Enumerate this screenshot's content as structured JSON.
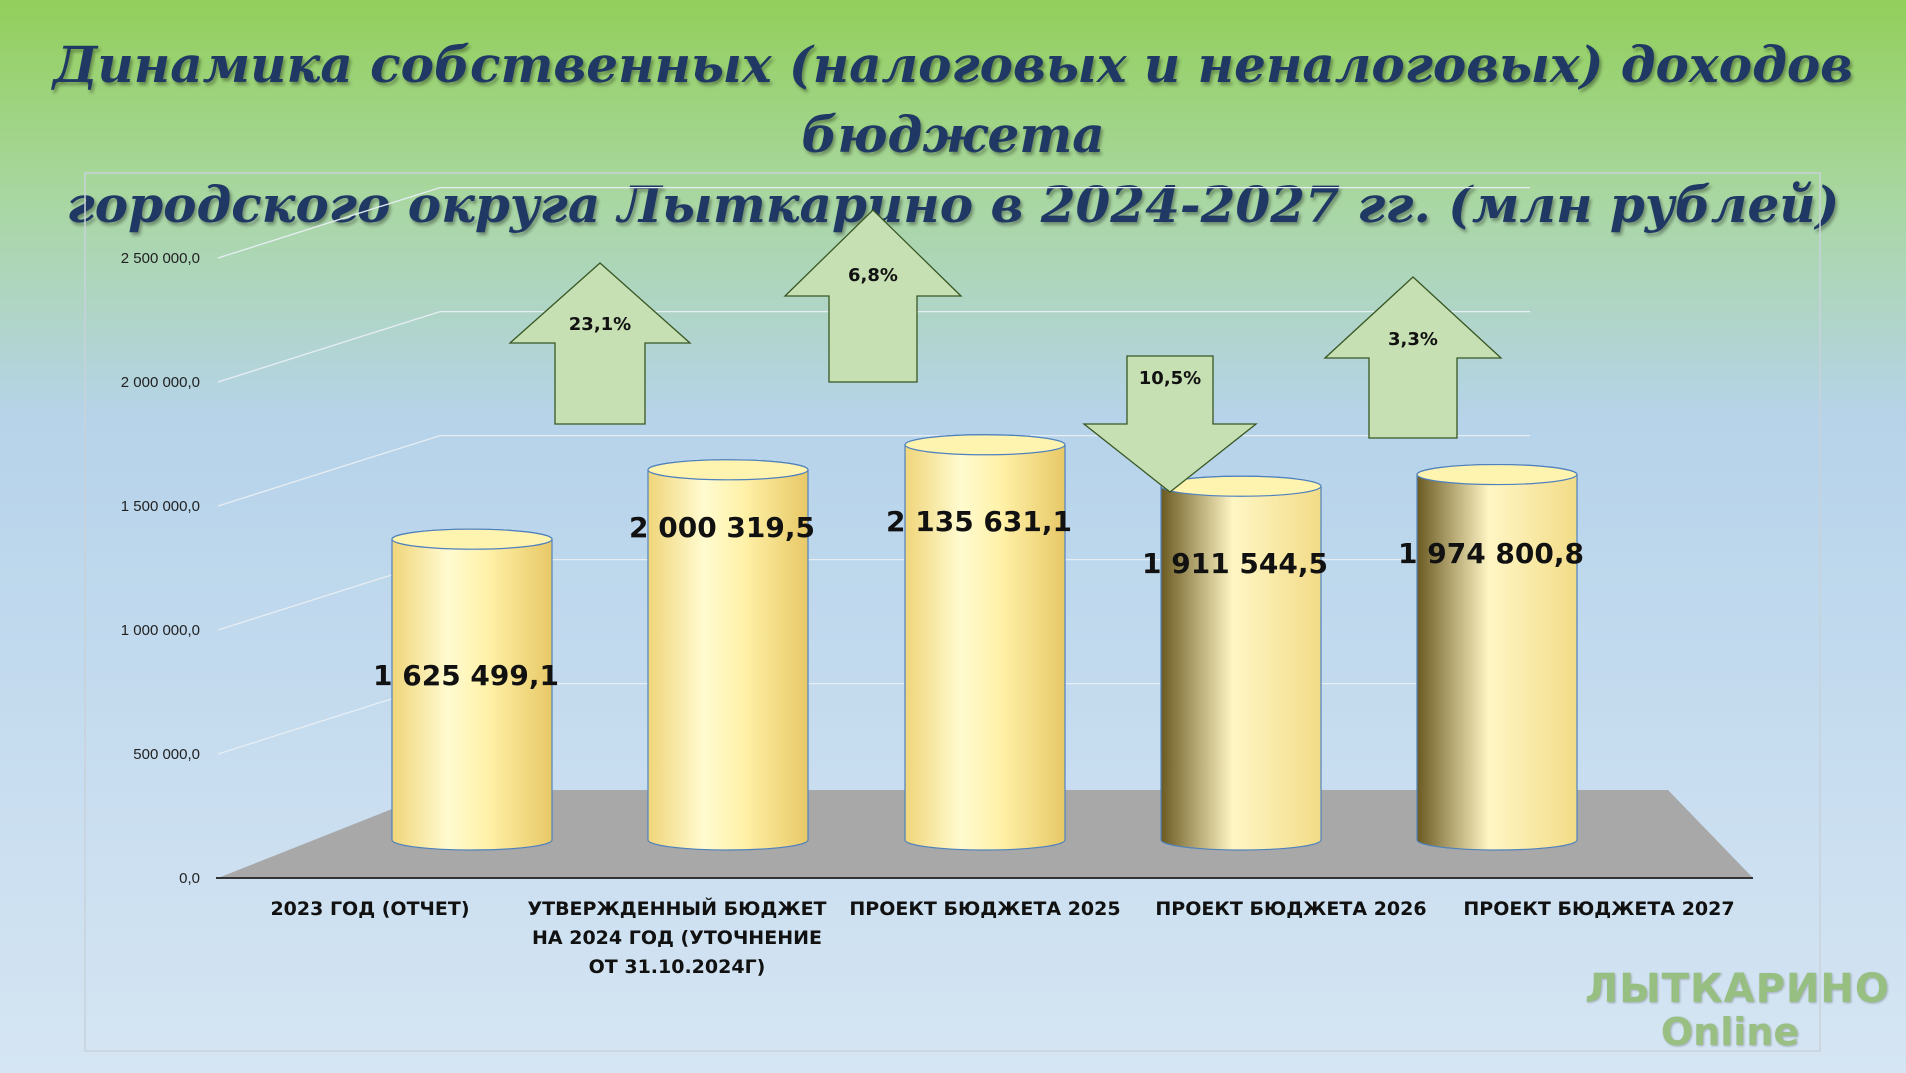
{
  "title_line1": "Динамика собственных (налоговых и неналоговых) доходов бюджета",
  "title_line2": "городского округа Лыткарино в 2024-2027 гг. (млн рублей)",
  "chart_data": {
    "type": "bar",
    "title": "Динамика собственных (налоговых и неналоговых) доходов бюджета городского округа Лыткарино в 2024-2027 гг. (млн рублей)",
    "categories": [
      "2023 ГОД (ОТЧЕТ)",
      "УТВЕРЖДЕННЫЙ БЮДЖЕТ НА 2024 ГОД (УТОЧНЕНИЕ ОТ 31.10.2024Г)",
      "ПРОЕКТ БЮДЖЕТА 2025",
      "ПРОЕКТ БЮДЖЕТА 2026",
      "ПРОЕКТ БЮДЖЕТА 2027"
    ],
    "category_lines": [
      [
        "2023 ГОД (ОТЧЕТ)"
      ],
      [
        "УТВЕРЖДЕННЫЙ БЮДЖЕТ",
        "НА 2024 ГОД (УТОЧНЕНИЕ",
        "ОТ 31.10.2024Г)"
      ],
      [
        "ПРОЕКТ БЮДЖЕТА 2025"
      ],
      [
        "ПРОЕКТ БЮДЖЕТА 2026"
      ],
      [
        "ПРОЕКТ БЮДЖЕТА 2027"
      ]
    ],
    "values": [
      1625499.1,
      2000319.5,
      2135631.1,
      1911544.5,
      1974800.8
    ],
    "value_labels": [
      "1 625 499,1",
      "2 000 319,5",
      "2 135 631,1",
      "1 911 544,5",
      "1 974 800,8"
    ],
    "ylim": [
      0,
      2500000
    ],
    "y_ticks": [
      0,
      500000,
      1000000,
      1500000,
      2000000,
      2500000
    ],
    "y_tick_labels": [
      "0,0",
      "500 000,0",
      "1 000 000,0",
      "1 500 000,0",
      "2 000 000,0",
      "2 500 000,0"
    ],
    "changes": [
      {
        "label": "23,1%",
        "direction": "up"
      },
      {
        "label": "6,8%",
        "direction": "up"
      },
      {
        "label": "10,5%",
        "direction": "down"
      },
      {
        "label": "3,3%",
        "direction": "up"
      }
    ],
    "grid": true,
    "style": "3d-cylinder",
    "colors": {
      "bar_light": "#fffdd0",
      "bar_mid": "#f3e08a",
      "bar_dark": "#6b5a22",
      "arrow_fill": "#c6e0b4",
      "arrow_stroke": "#385723",
      "floor": "#a6a6a6"
    }
  },
  "watermark": {
    "line1": "ЛЫТКАРИНО",
    "line2": "Online"
  }
}
